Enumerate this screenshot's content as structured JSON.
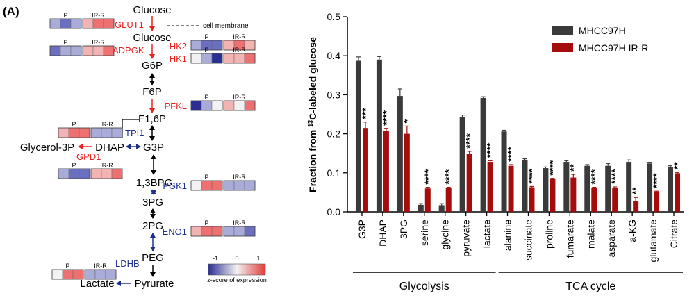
{
  "panel_label": "(A)",
  "colors": {
    "red_enzyme": "#e8221f",
    "blue_enzyme": "#1f2f8f",
    "series_dark": "#3a3a3a",
    "series_red": "#a50d0d",
    "heat_scale": [
      "#2b2f95",
      "#6a6fc0",
      "#a9abd9",
      "#f2f2f2",
      "#f4b3b3",
      "#ef7070",
      "#e23a3a"
    ]
  },
  "pathway": {
    "metabolites": [
      {
        "key": "glucose_ext",
        "label": "Glucose"
      },
      {
        "key": "glucose_int",
        "label": "Glucose"
      },
      {
        "key": "g6p",
        "label": "G6P"
      },
      {
        "key": "f6p",
        "label": "F6P"
      },
      {
        "key": "f16p",
        "label": "F1,6P"
      },
      {
        "key": "dhap",
        "label": "DHAP"
      },
      {
        "key": "g3p",
        "label": "G3P"
      },
      {
        "key": "glycerol3p",
        "label": "Glycerol-3P"
      },
      {
        "key": "bpg",
        "label": "1,3BPG"
      },
      {
        "key": "pg3",
        "label": "3PG"
      },
      {
        "key": "pg2",
        "label": "2PG"
      },
      {
        "key": "peg",
        "label": "PEG"
      },
      {
        "key": "pyrurate",
        "label": "Pyrurate"
      },
      {
        "key": "lactate",
        "label": "Lactate"
      }
    ],
    "membrane_label": "cell membrane",
    "enzymes": [
      {
        "key": "glut1",
        "label": "GLUT1",
        "color": "red",
        "heat": [
          -0.6,
          -0.7,
          -0.5,
          0.6,
          0.8,
          0.7
        ]
      },
      {
        "key": "adpgk",
        "label": "ADPGK",
        "color": "red",
        "heat": [
          -0.8,
          -0.3,
          -0.6,
          0.6,
          0.4,
          0.7
        ]
      },
      {
        "key": "hk2",
        "label": "HK2",
        "color": "red",
        "heat": [
          -0.5,
          -0.7,
          -1.0,
          0.5,
          0.7,
          0.6
        ]
      },
      {
        "key": "hk1",
        "label": "HK1",
        "color": "red",
        "heat": [
          0.0,
          -0.3,
          -1.2,
          0.6,
          0.5,
          0.8
        ]
      },
      {
        "key": "pfkl",
        "label": "PFKL",
        "color": "red",
        "heat": [
          -1.3,
          -0.4,
          -0.1,
          0.6,
          0.1,
          0.8
        ]
      },
      {
        "key": "tpi1",
        "label": "TPI1",
        "color": "blue",
        "heat": [
          0.3,
          0.9,
          0.8,
          -0.6,
          -0.5,
          -0.6
        ]
      },
      {
        "key": "gpd1",
        "label": "GPD1",
        "color": "red",
        "heat": [
          -0.3,
          -0.8,
          -1.0,
          0.6,
          0.5,
          0.7
        ]
      },
      {
        "key": "pgk1",
        "label": "PGK1",
        "color": "blue",
        "heat": [
          0.2,
          0.8,
          0.9,
          -0.6,
          -0.5,
          -0.6
        ]
      },
      {
        "key": "eno1",
        "label": "ENO1",
        "color": "blue",
        "heat": [
          0.3,
          0.9,
          0.7,
          -0.5,
          -0.6,
          -0.8
        ]
      },
      {
        "key": "ldhb",
        "label": "LDHB",
        "color": "blue",
        "heat": [
          0.0,
          0.9,
          1.0,
          -0.6,
          -0.5,
          -0.6
        ]
      }
    ],
    "group_labels": {
      "parental": "P",
      "resistant": "IR-R"
    },
    "legend": {
      "ticks": [
        "-1",
        "0",
        "1"
      ],
      "caption": "z-score of expression"
    }
  },
  "chart_data": {
    "type": "bar",
    "categories": [
      "G3P",
      "DHAP",
      "3PG",
      "serine",
      "glycine",
      "pyruvate",
      "lactate",
      "alanine",
      "succinate",
      "proline",
      "fumarate",
      "malate",
      "asparate",
      "a-KG",
      "glutamate",
      "Citrate"
    ],
    "series": [
      {
        "name": "MHCC97H",
        "color": "#3a3a3a",
        "values": [
          0.387,
          0.39,
          0.297,
          0.018,
          0.017,
          0.243,
          0.292,
          0.206,
          0.133,
          0.112,
          0.128,
          0.118,
          0.118,
          0.128,
          0.124,
          0.115
        ],
        "errors": [
          0.01,
          0.008,
          0.018,
          0.003,
          0.004,
          0.005,
          0.003,
          0.003,
          0.003,
          0.003,
          0.003,
          0.003,
          0.006,
          0.005,
          0.003,
          0.003
        ]
      },
      {
        "name": "MHCC97H IR-R",
        "color": "#a50d0d",
        "values": [
          0.215,
          0.208,
          0.2,
          0.06,
          0.061,
          0.148,
          0.128,
          0.118,
          0.063,
          0.084,
          0.088,
          0.061,
          0.061,
          0.027,
          0.051,
          0.099
        ],
        "errors": [
          0.015,
          0.006,
          0.02,
          0.003,
          0.002,
          0.007,
          0.003,
          0.003,
          0.002,
          0.002,
          0.008,
          0.002,
          0.003,
          0.01,
          0.002,
          0.002
        ]
      }
    ],
    "significance": [
      "***",
      "****",
      "*",
      "****",
      "****",
      "****",
      "****",
      "****",
      "****",
      "****",
      "**",
      "****",
      "****",
      "**",
      "****",
      "**"
    ],
    "ylabel_prefix": "Fraction  from ",
    "ylabel_sup": "13",
    "ylabel_suffix": "C-labeled glucose",
    "ylim": [
      0,
      0.5
    ],
    "yticks": [
      "0.0",
      "0.1",
      "0.2",
      "0.3",
      "0.4",
      "0.5"
    ],
    "ytick_values": [
      0,
      0.1,
      0.2,
      0.3,
      0.4,
      0.5
    ],
    "groups": [
      {
        "label": "Glycolysis",
        "from": 0,
        "to": 6
      },
      {
        "label": "TCA cycle",
        "from": 7,
        "to": 15
      }
    ],
    "legend_position": "top-right"
  }
}
